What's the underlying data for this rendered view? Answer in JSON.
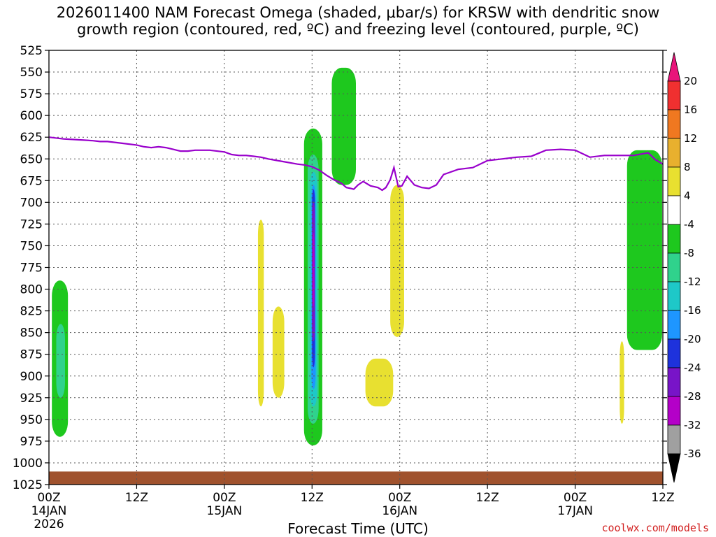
{
  "title": "2026011400 NAM Forecast Omega (shaded, μbar/s) for KRSW with dendritic snow\ngrowth region (contoured, red, ºC) and freezing level (contoured, purple, ºC)",
  "credit": "coolwx.com/models",
  "chart_data": {
    "type": "heatmap",
    "title": "2026011400 NAM Forecast Omega (shaded, μbar/s) for KRSW with dendritic snow growth region (contoured, red, ºC) and freezing level (contoured, purple, ºC)",
    "xlabel": "Forecast Time (UTC)",
    "ylabel": "",
    "x_unit": "forecast hour",
    "xlim": [
      0,
      84
    ],
    "ylim": [
      1025,
      525
    ],
    "x_ticks": [
      {
        "hour": 0,
        "label": "00Z",
        "sub": "14JAN",
        "sub2": "2026"
      },
      {
        "hour": 12,
        "label": "12Z",
        "sub": "",
        "sub2": ""
      },
      {
        "hour": 24,
        "label": "00Z",
        "sub": "15JAN",
        "sub2": ""
      },
      {
        "hour": 36,
        "label": "12Z",
        "sub": "",
        "sub2": ""
      },
      {
        "hour": 48,
        "label": "00Z",
        "sub": "16JAN",
        "sub2": ""
      },
      {
        "hour": 60,
        "label": "12Z",
        "sub": "",
        "sub2": ""
      },
      {
        "hour": 72,
        "label": "00Z",
        "sub": "17JAN",
        "sub2": ""
      },
      {
        "hour": 84,
        "label": "12Z",
        "sub": "",
        "sub2": ""
      }
    ],
    "y_ticks": [
      525,
      550,
      575,
      600,
      625,
      650,
      675,
      700,
      725,
      750,
      775,
      800,
      825,
      850,
      875,
      900,
      925,
      950,
      975,
      1000,
      1025
    ],
    "grid": true,
    "legend": "right colorbar",
    "colorbar": {
      "levels": [
        20,
        16,
        12,
        8,
        4,
        -4,
        -8,
        -12,
        -16,
        -20,
        -24,
        -28,
        -32,
        -36
      ],
      "colors": [
        "#e8147a",
        "#f03030",
        "#f07820",
        "#e8b02e",
        "#e8e030",
        "#ffffff",
        "#1ec81e",
        "#30d28c",
        "#1ec8c8",
        "#1e96ff",
        "#1e32dc",
        "#7814c8",
        "#b400c8",
        "#a0a0a0",
        "#000000"
      ]
    },
    "freezing_level": {
      "color": "#9900cc",
      "hour": [
        0,
        2,
        4,
        6,
        7,
        8,
        10,
        12,
        13,
        14,
        15,
        16,
        17,
        18,
        19,
        20,
        22,
        24,
        25,
        26,
        27,
        28,
        29,
        30,
        32,
        34,
        35,
        36,
        37,
        38,
        39,
        40,
        40.7,
        41.3,
        41.7,
        42.3,
        43,
        44,
        45,
        45.6,
        46.1,
        46.7,
        47.2,
        47.8,
        48.3,
        49,
        50,
        51,
        52,
        53,
        54,
        56,
        58,
        60,
        62,
        64,
        66,
        68,
        70,
        72,
        74,
        76,
        78,
        80,
        82,
        83,
        84
      ],
      "hpa": [
        625,
        627,
        628,
        629,
        630,
        630,
        632,
        634,
        636,
        637,
        636,
        637,
        639,
        641,
        641,
        640,
        640,
        642,
        645,
        646,
        646,
        647,
        648,
        650,
        653,
        656,
        657,
        659,
        663,
        669,
        674,
        678,
        683,
        684,
        685,
        680,
        676,
        681,
        683,
        686,
        683,
        674,
        660,
        682,
        681,
        670,
        680,
        683,
        684,
        680,
        668,
        662,
        660,
        652,
        650,
        648,
        647,
        640,
        639,
        640,
        648,
        646,
        646,
        646,
        643,
        651,
        656
      ]
    },
    "omega_regions": [
      {
        "level": -8,
        "color": "#1ec81e",
        "hour": [
          0.4,
          2.6
        ],
        "hpa": [
          790,
          970
        ]
      },
      {
        "level": -12,
        "color": "#30d28c",
        "hour": [
          1.0,
          2.2
        ],
        "hpa": [
          840,
          925
        ]
      },
      {
        "level": 4,
        "color": "#e8e030",
        "hour": [
          28.6,
          29.4
        ],
        "hpa": [
          720,
          935
        ]
      },
      {
        "level": 4,
        "color": "#e8e030",
        "hour": [
          30.6,
          32.2
        ],
        "hpa": [
          820,
          925
        ]
      },
      {
        "level": -8,
        "color": "#1ec81e",
        "hour": [
          34.9,
          37.4
        ],
        "hpa": [
          615,
          980
        ]
      },
      {
        "level": -12,
        "color": "#30d28c",
        "hour": [
          35.4,
          36.9
        ],
        "hpa": [
          645,
          955
        ]
      },
      {
        "level": -16,
        "color": "#1ec8c8",
        "hour": [
          35.7,
          36.7
        ],
        "hpa": [
          665,
          935
        ]
      },
      {
        "level": -20,
        "color": "#1e96ff",
        "hour": [
          35.9,
          36.5
        ],
        "hpa": [
          680,
          915
        ]
      },
      {
        "level": -24,
        "color": "#1e32dc",
        "hour": [
          36.0,
          36.4
        ],
        "hpa": [
          685,
          890
        ]
      },
      {
        "level": -28,
        "color": "#7814c8",
        "hour": [
          36.0,
          36.4
        ],
        "hpa": [
          700,
          860
        ]
      },
      {
        "level": -32,
        "color": "#b400c8",
        "hour": [
          36.1,
          36.3
        ],
        "hpa": [
          735,
          820
        ]
      },
      {
        "level": -8,
        "color": "#1ec81e",
        "hour": [
          38.7,
          42.0
        ],
        "hpa": [
          545,
          680
        ]
      },
      {
        "level": 4,
        "color": "#e8e030",
        "hour": [
          43.3,
          47.1
        ],
        "hpa": [
          880,
          935
        ]
      },
      {
        "level": 4,
        "color": "#e8e030",
        "hour": [
          46.7,
          48.6
        ],
        "hpa": [
          680,
          855
        ]
      },
      {
        "level": 4,
        "color": "#e8e030",
        "hour": [
          78.1,
          78.7
        ],
        "hpa": [
          860,
          955
        ]
      },
      {
        "level": -8,
        "color": "#1ec81e",
        "hour": [
          79.1,
          83.9
        ],
        "hpa": [
          640,
          870
        ]
      }
    ],
    "surface_terrain": {
      "color": "#a0522d",
      "top_hpa": 1010
    }
  }
}
